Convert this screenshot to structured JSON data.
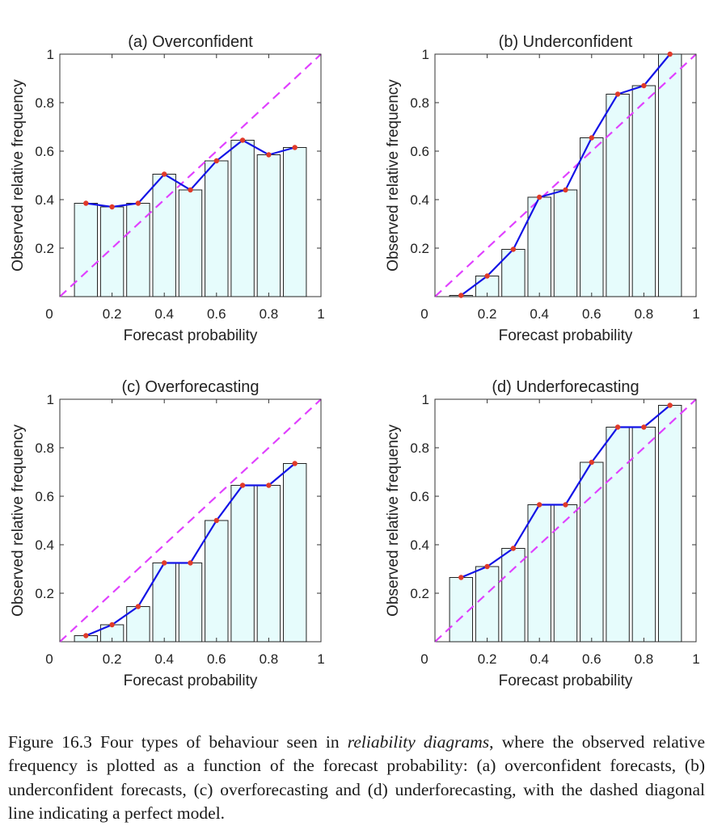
{
  "chart_data": [
    {
      "type": "bar",
      "title": "(a)  Overconfident",
      "xlabel": "Forecast probability",
      "ylabel": "Observed relative frequency",
      "x": [
        0.1,
        0.2,
        0.3,
        0.4,
        0.5,
        0.6,
        0.7,
        0.8,
        0.9
      ],
      "values": [
        0.385,
        0.37,
        0.385,
        0.505,
        0.44,
        0.56,
        0.645,
        0.585,
        0.615
      ],
      "xlim": [
        0,
        1
      ],
      "ylim": [
        0,
        1
      ],
      "xticks": [
        "0",
        "0.2",
        "0.4",
        "0.6",
        "0.8",
        "1"
      ],
      "yticks": [
        "0.2",
        "0.4",
        "0.6",
        "0.8",
        "1"
      ],
      "reference_line": "diagonal, dashed",
      "grid": false
    },
    {
      "type": "bar",
      "title": "(b)  Underconfident",
      "xlabel": "Forecast probability",
      "ylabel": "Observed relative frequency",
      "x": [
        0.1,
        0.2,
        0.3,
        0.4,
        0.5,
        0.6,
        0.7,
        0.8,
        0.9
      ],
      "values": [
        0.005,
        0.085,
        0.195,
        0.41,
        0.44,
        0.655,
        0.835,
        0.87,
        1.0
      ],
      "xlim": [
        0,
        1
      ],
      "ylim": [
        0,
        1
      ],
      "xticks": [
        "0",
        "0.2",
        "0.4",
        "0.6",
        "0.8",
        "1"
      ],
      "yticks": [
        "0.2",
        "0.4",
        "0.6",
        "0.8",
        "1"
      ],
      "reference_line": "diagonal, dashed",
      "grid": false
    },
    {
      "type": "bar",
      "title": "(c)  Overforecasting",
      "xlabel": "Forecast probability",
      "ylabel": "Observed relative frequency",
      "x": [
        0.1,
        0.2,
        0.3,
        0.4,
        0.5,
        0.6,
        0.7,
        0.8,
        0.9
      ],
      "values": [
        0.025,
        0.07,
        0.145,
        0.325,
        0.325,
        0.5,
        0.645,
        0.645,
        0.735
      ],
      "xlim": [
        0,
        1
      ],
      "ylim": [
        0,
        1
      ],
      "xticks": [
        "0",
        "0.2",
        "0.4",
        "0.6",
        "0.8",
        "1"
      ],
      "yticks": [
        "0.2",
        "0.4",
        "0.6",
        "0.8",
        "1"
      ],
      "reference_line": "diagonal, dashed",
      "grid": false
    },
    {
      "type": "bar",
      "title": "(d)  Underforecasting",
      "xlabel": "Forecast probability",
      "ylabel": "Observed relative frequency",
      "x": [
        0.1,
        0.2,
        0.3,
        0.4,
        0.5,
        0.6,
        0.7,
        0.8,
        0.9
      ],
      "values": [
        0.265,
        0.31,
        0.385,
        0.565,
        0.565,
        0.74,
        0.885,
        0.885,
        0.975
      ],
      "xlim": [
        0,
        1
      ],
      "ylim": [
        0,
        1
      ],
      "xticks": [
        "0",
        "0.2",
        "0.4",
        "0.6",
        "0.8",
        "1"
      ],
      "yticks": [
        "0.2",
        "0.4",
        "0.6",
        "0.8",
        "1"
      ],
      "reference_line": "diagonal, dashed",
      "grid": false
    }
  ],
  "colors": {
    "bar_fill": "#e6fcfc",
    "bar_stroke": "#222222",
    "line": "#1414e6",
    "marker": "#e03a2a",
    "diagonal": "#e040ff"
  },
  "caption": {
    "prefix": "Figure 16.3 Four types of behaviour seen in ",
    "emphasis": "reliability diagrams",
    "suffix": ", where the observed relative frequency is plotted as a function of the forecast probability: (a) overconfident forecasts, (b) underconfident forecasts, (c) overforecasting and (d) underforecasting, with the dashed diagonal line indicating a perfect model."
  }
}
